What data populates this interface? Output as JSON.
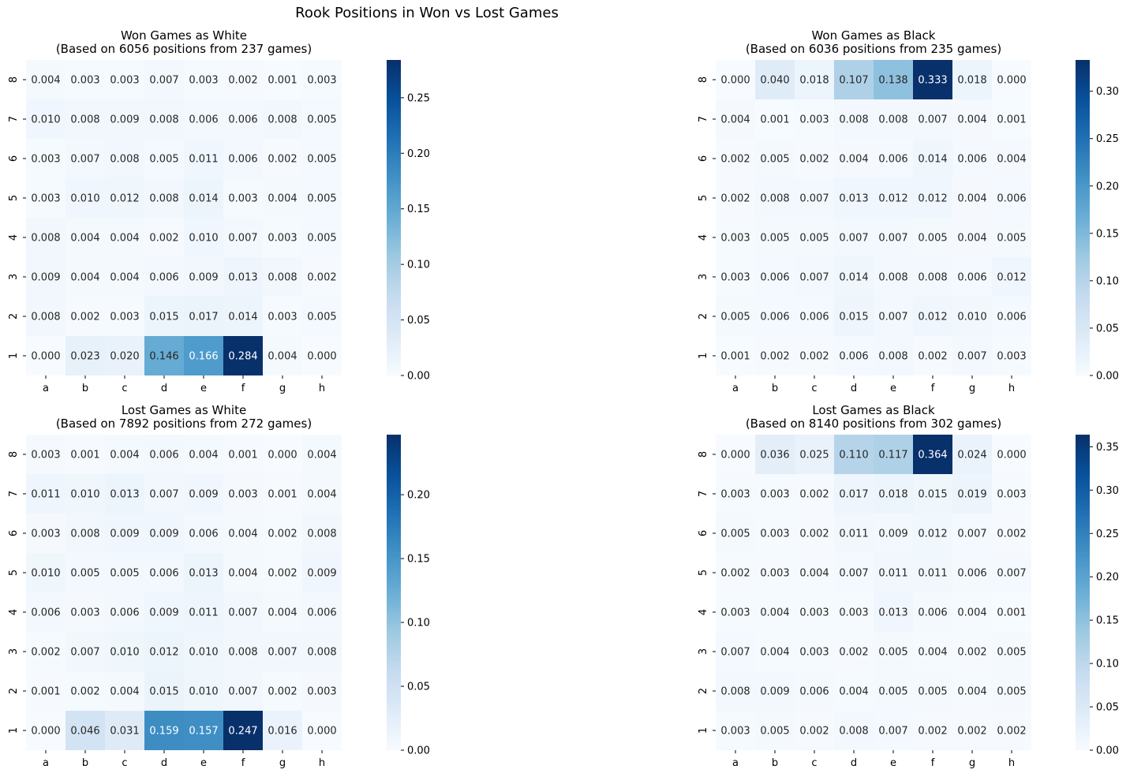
{
  "suptitle": "Rook Positions in Won vs Lost Games",
  "chart_data": [
    {
      "type": "heatmap",
      "title": "Won Games as White",
      "subtitle": "(Based on 6056 positions from 237 games)",
      "x_categories": [
        "a",
        "b",
        "c",
        "d",
        "e",
        "f",
        "g",
        "h"
      ],
      "y_categories": [
        "8",
        "7",
        "6",
        "5",
        "4",
        "3",
        "2",
        "1"
      ],
      "values": [
        [
          0.004,
          0.003,
          0.003,
          0.007,
          0.003,
          0.002,
          0.001,
          0.003
        ],
        [
          0.01,
          0.008,
          0.009,
          0.008,
          0.006,
          0.006,
          0.008,
          0.005
        ],
        [
          0.003,
          0.007,
          0.008,
          0.005,
          0.011,
          0.006,
          0.002,
          0.005
        ],
        [
          0.003,
          0.01,
          0.012,
          0.008,
          0.014,
          0.003,
          0.004,
          0.005
        ],
        [
          0.008,
          0.004,
          0.004,
          0.002,
          0.01,
          0.007,
          0.003,
          0.005
        ],
        [
          0.009,
          0.004,
          0.004,
          0.006,
          0.009,
          0.013,
          0.008,
          0.002
        ],
        [
          0.008,
          0.002,
          0.003,
          0.015,
          0.017,
          0.014,
          0.003,
          0.005
        ],
        [
          0.0,
          0.023,
          0.02,
          0.146,
          0.166,
          0.284,
          0.004,
          0.0
        ]
      ],
      "colorbar": {
        "vmin": 0,
        "vmax": 0.284,
        "ticks": [
          "0.00",
          "0.05",
          "0.10",
          "0.15",
          "0.20",
          "0.25"
        ]
      },
      "colormap": "Blues"
    },
    {
      "type": "heatmap",
      "title": "Won Games as Black",
      "subtitle": "(Based on 6036 positions from 235 games)",
      "x_categories": [
        "a",
        "b",
        "c",
        "d",
        "e",
        "f",
        "g",
        "h"
      ],
      "y_categories": [
        "8",
        "7",
        "6",
        "5",
        "4",
        "3",
        "2",
        "1"
      ],
      "values": [
        [
          0.0,
          0.04,
          0.018,
          0.107,
          0.138,
          0.333,
          0.018,
          0.0
        ],
        [
          0.004,
          0.001,
          0.003,
          0.008,
          0.008,
          0.007,
          0.004,
          0.001
        ],
        [
          0.002,
          0.005,
          0.002,
          0.004,
          0.006,
          0.014,
          0.006,
          0.004
        ],
        [
          0.002,
          0.008,
          0.007,
          0.013,
          0.012,
          0.012,
          0.004,
          0.006
        ],
        [
          0.003,
          0.005,
          0.005,
          0.007,
          0.007,
          0.005,
          0.004,
          0.005
        ],
        [
          0.003,
          0.006,
          0.007,
          0.014,
          0.008,
          0.008,
          0.006,
          0.012
        ],
        [
          0.005,
          0.006,
          0.006,
          0.015,
          0.007,
          0.012,
          0.01,
          0.006
        ],
        [
          0.001,
          0.002,
          0.002,
          0.006,
          0.008,
          0.002,
          0.007,
          0.003
        ]
      ],
      "colorbar": {
        "vmin": 0,
        "vmax": 0.333,
        "ticks": [
          "0.00",
          "0.05",
          "0.10",
          "0.15",
          "0.20",
          "0.25",
          "0.30"
        ]
      },
      "colormap": "Blues"
    },
    {
      "type": "heatmap",
      "title": "Lost Games as White",
      "subtitle": "(Based on 7892 positions from 272 games)",
      "x_categories": [
        "a",
        "b",
        "c",
        "d",
        "e",
        "f",
        "g",
        "h"
      ],
      "y_categories": [
        "8",
        "7",
        "6",
        "5",
        "4",
        "3",
        "2",
        "1"
      ],
      "values": [
        [
          0.003,
          0.001,
          0.004,
          0.006,
          0.004,
          0.001,
          0.0,
          0.004
        ],
        [
          0.011,
          0.01,
          0.013,
          0.007,
          0.009,
          0.003,
          0.001,
          0.004
        ],
        [
          0.003,
          0.008,
          0.009,
          0.009,
          0.006,
          0.004,
          0.002,
          0.008
        ],
        [
          0.01,
          0.005,
          0.005,
          0.006,
          0.013,
          0.004,
          0.002,
          0.009
        ],
        [
          0.006,
          0.003,
          0.006,
          0.009,
          0.011,
          0.007,
          0.004,
          0.006
        ],
        [
          0.002,
          0.007,
          0.01,
          0.012,
          0.01,
          0.008,
          0.007,
          0.008
        ],
        [
          0.001,
          0.002,
          0.004,
          0.015,
          0.01,
          0.007,
          0.002,
          0.003
        ],
        [
          0.0,
          0.046,
          0.031,
          0.159,
          0.157,
          0.247,
          0.016,
          0.0
        ]
      ],
      "colorbar": {
        "vmin": 0,
        "vmax": 0.247,
        "ticks": [
          "0.00",
          "0.05",
          "0.10",
          "0.15",
          "0.20"
        ]
      },
      "colormap": "Blues"
    },
    {
      "type": "heatmap",
      "title": "Lost Games as Black",
      "subtitle": "(Based on 8140 positions from 302 games)",
      "x_categories": [
        "a",
        "b",
        "c",
        "d",
        "e",
        "f",
        "g",
        "h"
      ],
      "y_categories": [
        "8",
        "7",
        "6",
        "5",
        "4",
        "3",
        "2",
        "1"
      ],
      "values": [
        [
          0.0,
          0.036,
          0.025,
          0.11,
          0.117,
          0.364,
          0.024,
          0.0
        ],
        [
          0.003,
          0.003,
          0.002,
          0.017,
          0.018,
          0.015,
          0.019,
          0.003
        ],
        [
          0.005,
          0.003,
          0.002,
          0.011,
          0.009,
          0.012,
          0.007,
          0.002
        ],
        [
          0.002,
          0.003,
          0.004,
          0.007,
          0.011,
          0.011,
          0.006,
          0.007
        ],
        [
          0.003,
          0.004,
          0.003,
          0.003,
          0.013,
          0.006,
          0.004,
          0.001
        ],
        [
          0.007,
          0.004,
          0.003,
          0.002,
          0.005,
          0.004,
          0.002,
          0.005
        ],
        [
          0.008,
          0.009,
          0.006,
          0.004,
          0.005,
          0.005,
          0.004,
          0.005
        ],
        [
          0.003,
          0.005,
          0.002,
          0.008,
          0.007,
          0.002,
          0.002,
          0.002
        ]
      ],
      "colorbar": {
        "vmin": 0,
        "vmax": 0.364,
        "ticks": [
          "0.00",
          "0.05",
          "0.10",
          "0.15",
          "0.20",
          "0.25",
          "0.30",
          "0.35"
        ]
      },
      "colormap": "Blues"
    }
  ]
}
